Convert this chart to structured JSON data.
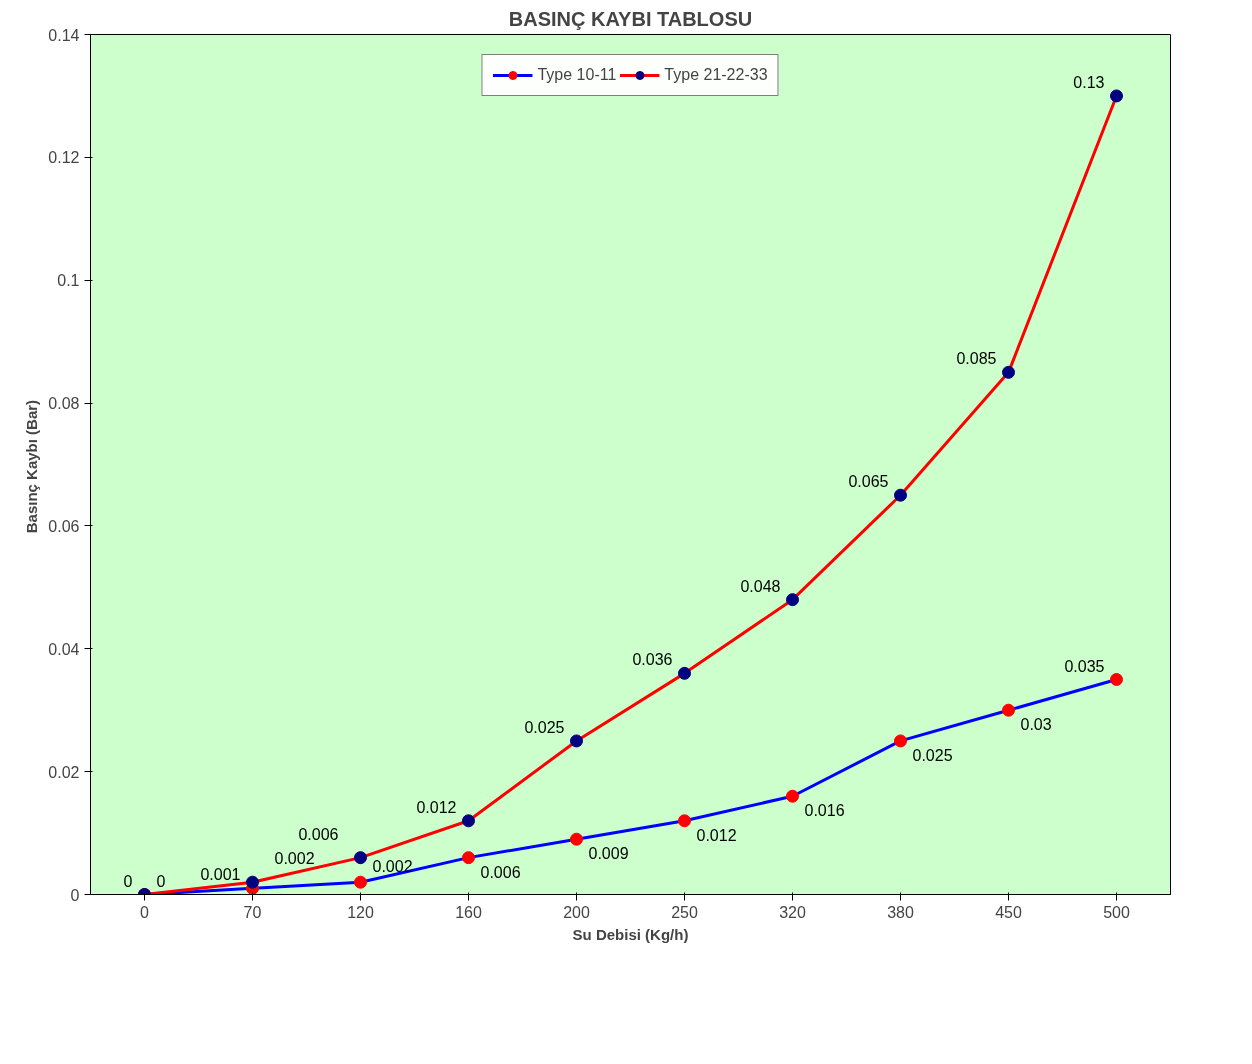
{
  "chart_data": {
    "type": "line",
    "title": "BASINÇ KAYBI TABLOSU",
    "xlabel": "Su Debisi (Kg/h)",
    "ylabel": "Basınç Kaybı  (Bar)",
    "categories": [
      "0",
      "70",
      "120",
      "160",
      "200",
      "250",
      "320",
      "380",
      "450",
      "500"
    ],
    "series": [
      {
        "name": "Type 10-11",
        "color": "#0000ff",
        "colors": [
          "#ff0000",
          "#ff0000",
          "#ff0000",
          "#ff0000",
          "#ff0000",
          "#ff0000",
          "#ff0000",
          "#ff0000",
          "#ff0000",
          "#ff0000"
        ],
        "values": [
          0,
          0.001,
          0.002,
          0.006,
          0.009,
          0.012,
          0.016,
          0.025,
          0.03,
          0.035
        ]
      },
      {
        "name": "Type 21-22-33",
        "color": "#ff0000",
        "colors": [
          "#000080",
          "#000080",
          "#000080",
          "#000080",
          "#000080",
          "#000080",
          "#000080",
          "#000080",
          "#000080",
          "#000080"
        ],
        "values": [
          0,
          0.002,
          0.006,
          0.012,
          0.025,
          0.036,
          0.048,
          0.065,
          0.085,
          0.13
        ]
      }
    ],
    "ylim": [
      0,
      0.14
    ],
    "yticks": [
      0,
      0.02,
      0.04,
      0.06,
      0.08,
      0.1,
      0.12,
      0.14
    ],
    "data_labels": true,
    "legend": "top",
    "grid": false,
    "marker": "circle",
    "line_style": "solid"
  }
}
